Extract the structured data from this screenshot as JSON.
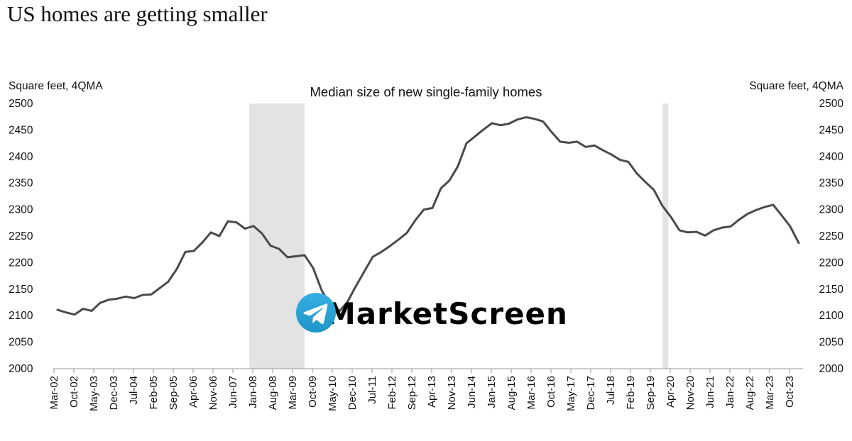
{
  "page_title": "US homes are getting smaller",
  "watermark": {
    "handle": "@MarketScreen"
  },
  "colors": {
    "line": "#4a4a4a",
    "shade": "#e3e3e3",
    "axis": "#999999",
    "brand": "#2aa3e0"
  },
  "chart_data": {
    "type": "line",
    "title": "Median size of new single-family homes",
    "ylabel_left": "Square feet, 4QMA",
    "ylabel_right": "Square feet, 4QMA",
    "ylim": [
      2000,
      2500
    ],
    "yticks": [
      2000,
      2050,
      2100,
      2150,
      2200,
      2250,
      2300,
      2350,
      2400,
      2450,
      2500
    ],
    "xtick_labels": [
      "Mar-02",
      "Oct-02",
      "May-03",
      "Dec-03",
      "Jul-04",
      "Feb-05",
      "Sep-05",
      "Apr-06",
      "Nov-06",
      "Jun-07",
      "Jan-08",
      "Aug-08",
      "Mar-09",
      "Oct-09",
      "May-10",
      "Dec-10",
      "Jul-11",
      "Feb-12",
      "Sep-12",
      "Apr-13",
      "Nov-13",
      "Jun-14",
      "Jan-15",
      "Aug-15",
      "Mar-16",
      "Oct-16",
      "May-17",
      "Dec-17",
      "Jul-18",
      "Feb-19",
      "Sep-19",
      "Apr-20",
      "Nov-20",
      "Jun-21",
      "Jan-22",
      "Aug-22",
      "Mar-23",
      "Oct-23"
    ],
    "recession_periods": [
      {
        "start_quarter_index": 23,
        "end_quarter_index": 29.5
      },
      {
        "start_quarter_index": 71.5,
        "end_quarter_index": 72.2
      }
    ],
    "series": [
      {
        "name": "Median size of new single-family homes (4QMA)",
        "quarter_start": "Q1 2002",
        "frequency": "quarterly",
        "values": [
          2111,
          2106,
          2102,
          2113,
          2109,
          2124,
          2130,
          2132,
          2136,
          2133,
          2139,
          2140,
          2152,
          2164,
          2188,
          2220,
          2222,
          2238,
          2257,
          2250,
          2278,
          2276,
          2264,
          2269,
          2255,
          2232,
          2226,
          2210,
          2212,
          2214,
          2190,
          2148,
          2120,
          2107,
          2125,
          2155,
          2183,
          2211,
          2220,
          2231,
          2243,
          2256,
          2280,
          2300,
          2303,
          2340,
          2355,
          2382,
          2425,
          2438,
          2451,
          2463,
          2459,
          2462,
          2470,
          2474,
          2471,
          2466,
          2446,
          2428,
          2426,
          2428,
          2418,
          2421,
          2412,
          2404,
          2394,
          2390,
          2368,
          2352,
          2337,
          2307,
          2286,
          2261,
          2257,
          2258,
          2251,
          2261,
          2266,
          2268,
          2281,
          2292,
          2299,
          2305,
          2309,
          2289,
          2268,
          2237
        ]
      }
    ]
  }
}
